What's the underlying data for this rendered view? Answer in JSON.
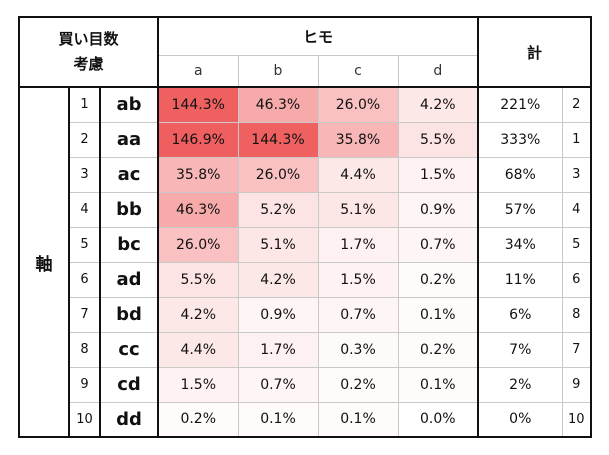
{
  "header": {
    "corner_line1": "買い目数",
    "corner_line2": "考慮",
    "himo": "ヒモ",
    "total": "計",
    "columns": [
      "a",
      "b",
      "c",
      "d"
    ]
  },
  "axis_label": "軸",
  "colors": {
    "cell_max": "#ef5f5f",
    "cell_min": "#ffffff",
    "frame": "#111111",
    "grid_line": "#c9c9c9"
  },
  "rows": [
    {
      "num": "1",
      "combo": "ab",
      "values": [
        "144.3%",
        "46.3%",
        "26.0%",
        "4.2%"
      ],
      "levels": [
        0.98,
        0.32,
        0.18,
        0.03
      ],
      "total": "221%",
      "rank": "2"
    },
    {
      "num": "2",
      "combo": "aa",
      "values": [
        "146.9%",
        "144.3%",
        "35.8%",
        "5.5%"
      ],
      "levels": [
        1.0,
        0.98,
        0.24,
        0.04
      ],
      "total": "333%",
      "rank": "1"
    },
    {
      "num": "3",
      "combo": "ac",
      "values": [
        "35.8%",
        "26.0%",
        "4.4%",
        "1.5%"
      ],
      "levels": [
        0.24,
        0.18,
        0.03,
        0.01
      ],
      "total": "68%",
      "rank": "3"
    },
    {
      "num": "4",
      "combo": "bb",
      "values": [
        "46.3%",
        "5.2%",
        "5.1%",
        "0.9%"
      ],
      "levels": [
        0.32,
        0.04,
        0.035,
        0.006
      ],
      "total": "57%",
      "rank": "4"
    },
    {
      "num": "5",
      "combo": "bc",
      "values": [
        "26.0%",
        "5.1%",
        "1.7%",
        "0.7%"
      ],
      "levels": [
        0.18,
        0.035,
        0.012,
        0.005
      ],
      "total": "34%",
      "rank": "5"
    },
    {
      "num": "6",
      "combo": "ad",
      "values": [
        "5.5%",
        "4.2%",
        "1.5%",
        "0.2%"
      ],
      "levels": [
        0.04,
        0.03,
        0.01,
        0.001
      ],
      "total": "11%",
      "rank": "6"
    },
    {
      "num": "7",
      "combo": "bd",
      "values": [
        "4.2%",
        "0.9%",
        "0.7%",
        "0.1%"
      ],
      "levels": [
        0.03,
        0.006,
        0.005,
        0.001
      ],
      "total": "6%",
      "rank": "8"
    },
    {
      "num": "8",
      "combo": "cc",
      "values": [
        "4.4%",
        "1.7%",
        "0.3%",
        "0.2%"
      ],
      "levels": [
        0.03,
        0.012,
        0.002,
        0.001
      ],
      "total": "7%",
      "rank": "7"
    },
    {
      "num": "9",
      "combo": "cd",
      "values": [
        "1.5%",
        "0.7%",
        "0.2%",
        "0.1%"
      ],
      "levels": [
        0.01,
        0.005,
        0.001,
        0.001
      ],
      "total": "2%",
      "rank": "9"
    },
    {
      "num": "10",
      "combo": "dd",
      "values": [
        "0.2%",
        "0.1%",
        "0.1%",
        "0.0%"
      ],
      "levels": [
        0.001,
        0.001,
        0.001,
        0.0
      ],
      "total": "0%",
      "rank": "10"
    }
  ]
}
